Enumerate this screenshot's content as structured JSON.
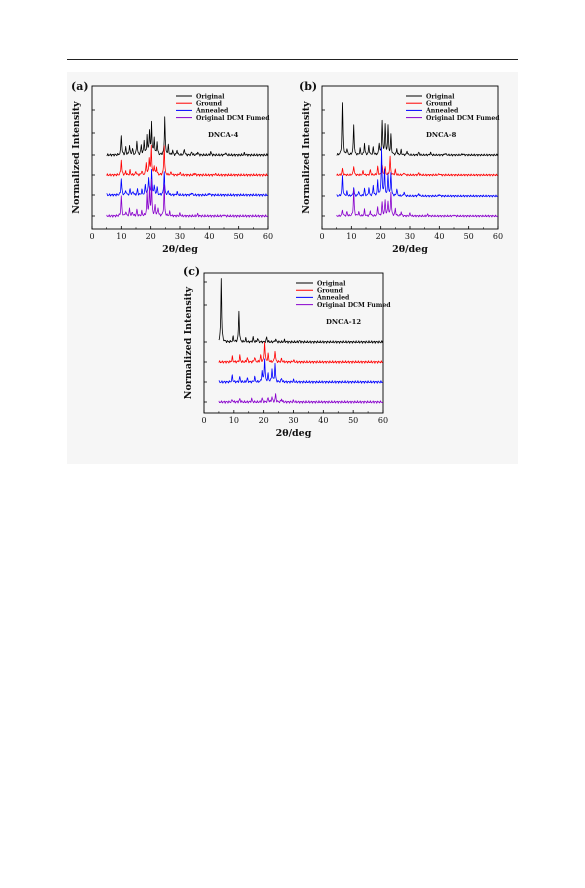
{
  "chart_data": [
    {
      "type": "line",
      "panel_label": "(a)",
      "annotation": "DNCA-4",
      "xlabel": "2θ/deg",
      "ylabel": "Normalized Intensity",
      "xlim": [
        0,
        60
      ],
      "xticks": [
        "0",
        "10",
        "20",
        "30",
        "40",
        "50",
        "60"
      ],
      "legend": {
        "placement": "top-right",
        "entries": [
          "Original",
          "Ground",
          "Annealed",
          "Original DCM Fumed"
        ]
      },
      "series": [
        {
          "name": "Original",
          "color": "#000000",
          "baseline": 0.0,
          "x": [
            10.0,
            11.5,
            12.8,
            13.8,
            15.3,
            16.8,
            17.8,
            18.8,
            19.6,
            20.3,
            21.2,
            22.2,
            24.8,
            26.0,
            27.5,
            29.0,
            31.5,
            34.0,
            36.0,
            40.5,
            45.5,
            52.0
          ],
          "y": [
            0.32,
            0.12,
            0.16,
            0.1,
            0.23,
            0.15,
            0.22,
            0.3,
            0.38,
            0.5,
            0.26,
            0.2,
            0.62,
            0.14,
            0.07,
            0.08,
            0.1,
            0.05,
            0.05,
            0.05,
            0.04,
            0.03
          ]
        },
        {
          "name": "Ground",
          "color": "#ff0000",
          "baseline": 0.0,
          "x": [
            10.0,
            11.5,
            13.0,
            15.0,
            17.0,
            18.5,
            19.5,
            20.2,
            21.2,
            22.0,
            24.6,
            27.0,
            30.0,
            35.0,
            42.0
          ],
          "y": [
            0.24,
            0.06,
            0.07,
            0.06,
            0.07,
            0.2,
            0.26,
            0.46,
            0.14,
            0.12,
            0.48,
            0.05,
            0.04,
            0.03,
            0.02
          ]
        },
        {
          "name": "Annealed",
          "color": "#0000ff",
          "baseline": 0.0,
          "x": [
            10.0,
            11.5,
            13.0,
            14.0,
            15.5,
            17.0,
            18.2,
            19.3,
            20.3,
            21.2,
            22.2,
            24.6,
            26.0,
            29.0,
            34.0,
            40.0
          ],
          "y": [
            0.26,
            0.08,
            0.1,
            0.06,
            0.09,
            0.08,
            0.16,
            0.28,
            0.4,
            0.15,
            0.12,
            0.38,
            0.07,
            0.05,
            0.04,
            0.03
          ]
        },
        {
          "name": "Original DCM Fumed",
          "color": "#8800cc",
          "baseline": 0.0,
          "x": [
            10.0,
            11.5,
            12.8,
            13.8,
            15.3,
            17.0,
            18.8,
            19.6,
            20.3,
            21.5,
            22.5,
            24.6,
            26.5,
            30.0,
            36.0,
            45.0
          ],
          "y": [
            0.32,
            0.07,
            0.12,
            0.06,
            0.1,
            0.07,
            0.36,
            0.42,
            0.54,
            0.17,
            0.13,
            0.48,
            0.06,
            0.04,
            0.03,
            0.02
          ]
        }
      ]
    },
    {
      "type": "line",
      "panel_label": "(b)",
      "annotation": "DNCA-8",
      "xlabel": "2θ/deg",
      "ylabel": "Normalized Intensity",
      "xlim": [
        0,
        60
      ],
      "xticks": [
        "0",
        "10",
        "20",
        "30",
        "40",
        "50",
        "60"
      ],
      "legend": {
        "placement": "top-right",
        "entries": [
          "Original",
          "Ground",
          "Annealed",
          "Original DCM Fumed"
        ]
      },
      "series": [
        {
          "name": "Original",
          "color": "#000000",
          "baseline": 0.0,
          "x": [
            7.0,
            8.5,
            10.8,
            13.0,
            14.5,
            16.0,
            17.5,
            19.5,
            20.5,
            21.5,
            22.5,
            23.5,
            25.5,
            27.0,
            29.0,
            33.0,
            37.0,
            42.0,
            48.0
          ],
          "y": [
            1.0,
            0.12,
            0.58,
            0.12,
            0.22,
            0.18,
            0.14,
            0.22,
            0.66,
            0.58,
            0.55,
            0.38,
            0.12,
            0.09,
            0.08,
            0.05,
            0.05,
            0.04,
            0.03
          ]
        },
        {
          "name": "Ground",
          "color": "#ff0000",
          "baseline": 0.0,
          "x": [
            7.0,
            10.8,
            14.0,
            16.5,
            19.0,
            20.5,
            21.5,
            23.2,
            25.0,
            28.0,
            33.0,
            40.0
          ],
          "y": [
            0.12,
            0.18,
            0.08,
            0.1,
            0.16,
            0.18,
            0.14,
            0.36,
            0.1,
            0.05,
            0.04,
            0.03
          ]
        },
        {
          "name": "Annealed",
          "color": "#0000ff",
          "baseline": 0.0,
          "x": [
            7.0,
            8.5,
            10.8,
            12.5,
            14.5,
            16.0,
            17.5,
            19.0,
            20.3,
            21.3,
            22.5,
            23.5,
            25.5,
            28.0,
            33.0,
            40.0
          ],
          "y": [
            0.38,
            0.08,
            0.16,
            0.1,
            0.14,
            0.16,
            0.2,
            0.28,
            0.92,
            0.48,
            0.4,
            0.45,
            0.14,
            0.08,
            0.05,
            0.03
          ]
        },
        {
          "name": "Original DCM Fumed",
          "color": "#8800cc",
          "baseline": 0.0,
          "x": [
            7.0,
            8.5,
            10.8,
            12.5,
            14.5,
            16.5,
            19.0,
            20.5,
            21.5,
            22.5,
            23.5,
            25.0,
            27.0,
            30.0,
            36.0,
            45.0
          ],
          "y": [
            0.12,
            0.08,
            0.5,
            0.08,
            0.12,
            0.1,
            0.18,
            0.26,
            0.3,
            0.28,
            0.46,
            0.14,
            0.08,
            0.05,
            0.03,
            0.02
          ]
        }
      ]
    },
    {
      "type": "line",
      "panel_label": "(c)",
      "annotation": "DNCA-12",
      "xlabel": "2θ/deg",
      "ylabel": "Normalized Intensity",
      "xlim": [
        0,
        60
      ],
      "xticks": [
        "0",
        "10",
        "20",
        "30",
        "40",
        "50",
        "60"
      ],
      "legend": {
        "placement": "top-right",
        "entries": [
          "Original",
          "Ground",
          "Annealed",
          "Original DCM Fumed"
        ]
      },
      "series": [
        {
          "name": "Original",
          "color": "#000000",
          "baseline": 0.0,
          "x": [
            5.8,
            9.8,
            11.7,
            14.0,
            16.5,
            18.0,
            21.0,
            24.0,
            27.0,
            32.0
          ],
          "y": [
            1.0,
            0.08,
            0.48,
            0.05,
            0.07,
            0.06,
            0.08,
            0.05,
            0.03,
            0.02
          ]
        },
        {
          "name": "Ground",
          "color": "#ff0000",
          "baseline": 0.0,
          "x": [
            9.5,
            12.0,
            14.5,
            17.0,
            19.0,
            20.3,
            21.5,
            23.8,
            26.0,
            30.0
          ],
          "y": [
            0.08,
            0.1,
            0.07,
            0.08,
            0.1,
            0.32,
            0.12,
            0.18,
            0.05,
            0.03
          ]
        },
        {
          "name": "Annealed",
          "color": "#0000ff",
          "baseline": 0.0,
          "x": [
            9.5,
            12.0,
            14.5,
            17.0,
            19.5,
            20.3,
            21.5,
            22.8,
            23.8,
            26.0,
            30.0
          ],
          "y": [
            0.1,
            0.08,
            0.06,
            0.08,
            0.16,
            0.36,
            0.12,
            0.2,
            0.28,
            0.06,
            0.03
          ]
        },
        {
          "name": "Original DCM Fumed",
          "color": "#8800cc",
          "baseline": 0.0,
          "x": [
            9.5,
            12.0,
            16.0,
            19.5,
            21.5,
            22.8,
            24.0,
            26.0,
            30.0
          ],
          "y": [
            0.04,
            0.05,
            0.05,
            0.06,
            0.07,
            0.08,
            0.12,
            0.05,
            0.02
          ]
        }
      ]
    }
  ]
}
